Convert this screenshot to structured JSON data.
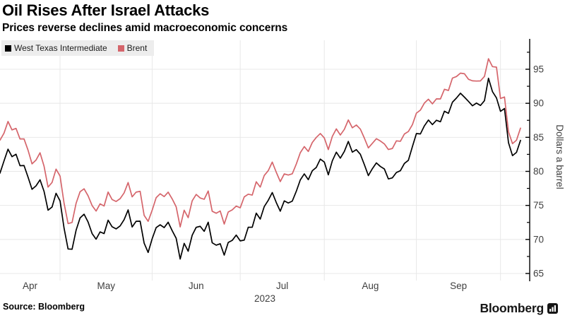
{
  "header": {
    "title": "Oil Rises After Israel Attacks",
    "subtitle": "Prices reverse declines amid macroeconomic concerns"
  },
  "footer": {
    "source": "Source:  Bloomberg",
    "brand": "Bloomberg"
  },
  "chart_data": {
    "type": "line",
    "title": "Oil Rises After Israel Attacks",
    "subtitle": "Prices reverse declines amid macroeconomic concerns",
    "xlabel": "",
    "ylabel": "Dollars a barrel",
    "ylim": [
      65,
      97.5
    ],
    "yticks": [
      65,
      70,
      75,
      80,
      85,
      90,
      95
    ],
    "minor_tick_step": 2.5,
    "grid": true,
    "legend_position": "top-left",
    "x_unit": "trading days, Apr 10 - Oct 9 2023",
    "year_label": "2023",
    "months": [
      {
        "label": "Apr",
        "start_index": 0
      },
      {
        "label": "May",
        "start_index": 15
      },
      {
        "label": "Jun",
        "start_index": 38
      },
      {
        "label": "Jul",
        "start_index": 60
      },
      {
        "label": "Aug",
        "start_index": 81
      },
      {
        "label": "Sep",
        "start_index": 104
      },
      {
        "label": "",
        "start_index": 125
      }
    ],
    "series": [
      {
        "name": "West Texas Intermediate",
        "color": "#000000",
        "values": [
          79.74,
          81.53,
          83.26,
          82.16,
          82.52,
          80.83,
          80.86,
          79.16,
          77.37,
          77.87,
          78.76,
          77.07,
          74.3,
          74.76,
          76.78,
          75.66,
          71.66,
          68.6,
          68.56,
          71.34,
          73.16,
          73.71,
          72.56,
          70.87,
          70.04,
          71.11,
          70.86,
          72.83,
          71.86,
          71.55,
          71.99,
          72.91,
          74.34,
          71.83,
          72.67,
          72.68,
          69.46,
          68.09,
          70.1,
          71.74,
          72.15,
          71.74,
          72.53,
          71.29,
          70.17,
          67.12,
          69.42,
          68.27,
          70.62,
          71.78,
          71.93,
          71.19,
          72.53,
          69.51,
          69.16,
          69.37,
          67.7,
          69.56,
          69.86,
          70.64,
          69.79,
          69.9,
          71.79,
          71.8,
          73.86,
          72.99,
          74.83,
          75.75,
          76.89,
          75.42,
          74.15,
          75.66,
          75.35,
          75.63,
          77.07,
          78.74,
          79.63,
          78.78,
          80.09,
          80.58,
          81.8,
          81.37,
          79.49,
          81.55,
          82.82,
          81.94,
          82.92,
          84.4,
          82.82,
          83.19,
          82.51,
          80.99,
          79.38,
          80.39,
          81.25,
          80.72,
          80.35,
          78.89,
          79.05,
          79.83,
          80.1,
          81.16,
          81.63,
          83.63,
          85.55,
          85.5,
          86.69,
          87.54,
          86.87,
          87.51,
          87.29,
          88.84,
          88.52,
          90.16,
          90.77,
          91.48,
          90.9,
          90.28,
          89.63,
          90.03,
          89.68,
          90.39,
          93.68,
          91.71,
          90.79,
          88.82,
          89.23,
          84.22,
          82.31,
          82.79,
          84.55
        ]
      },
      {
        "name": "Brent",
        "color": "#d5656b",
        "values": [
          84.58,
          85.61,
          87.33,
          86.09,
          86.31,
          84.76,
          84.77,
          83.12,
          81.1,
          81.66,
          82.73,
          80.77,
          77.69,
          78.37,
          80.33,
          79.31,
          75.32,
          72.33,
          72.5,
          75.3,
          77.01,
          77.44,
          76.41,
          74.98,
          74.17,
          75.23,
          74.91,
          76.96,
          75.86,
          75.58,
          75.99,
          76.84,
          78.36,
          76.26,
          76.95,
          77.07,
          73.54,
          72.66,
          74.28,
          76.13,
          76.71,
          76.29,
          76.95,
          75.96,
          74.79,
          71.84,
          74.29,
          73.2,
          75.67,
          76.61,
          76.09,
          75.9,
          77.12,
          74.14,
          73.85,
          74.18,
          72.26,
          74.03,
          74.34,
          74.9,
          74.65,
          76.25,
          76.65,
          76.52,
          78.47,
          77.69,
          79.4,
          80.11,
          81.36,
          79.87,
          78.5,
          79.63,
          79.46,
          79.64,
          81.07,
          82.74,
          83.64,
          82.92,
          84.24,
          84.99,
          85.56,
          84.91,
          83.2,
          85.14,
          86.24,
          85.34,
          86.17,
          87.55,
          86.4,
          86.81,
          86.21,
          84.89,
          83.45,
          84.12,
          84.8,
          84.46,
          84.03,
          83.21,
          83.36,
          84.48,
          84.42,
          85.49,
          85.86,
          86.86,
          88.55,
          89.0,
          90.04,
          90.6,
          89.92,
          90.65,
          90.64,
          92.06,
          91.88,
          93.7,
          93.93,
          94.43,
          94.34,
          93.53,
          93.3,
          93.27,
          93.29,
          93.96,
          96.55,
          95.38,
          95.31,
          90.71,
          90.92,
          85.81,
          84.07,
          84.58,
          86.35
        ]
      }
    ]
  }
}
